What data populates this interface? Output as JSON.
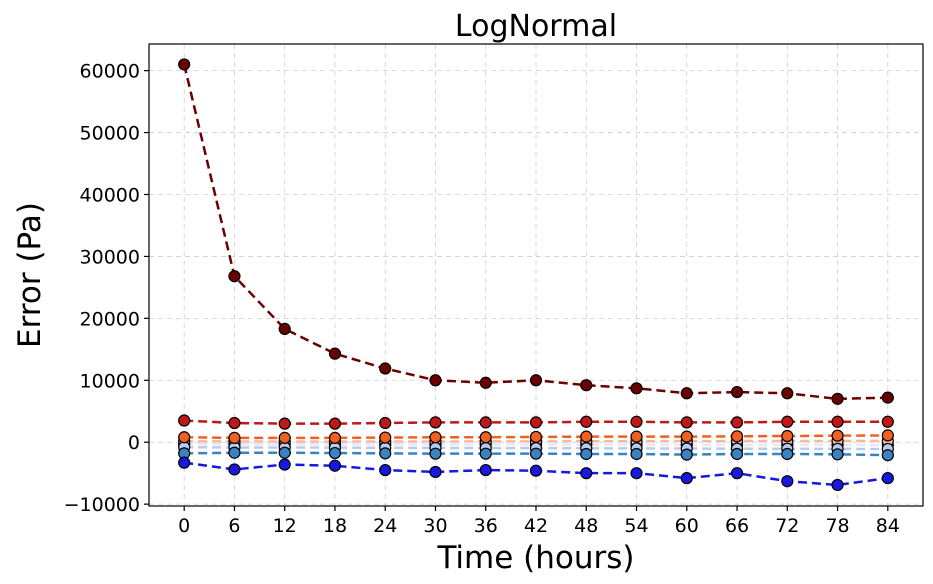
{
  "chart_data": {
    "type": "line",
    "title": "LogNormal",
    "xlabel": "Time (hours)",
    "ylabel": "Error (Pa)",
    "x": [
      0,
      6,
      12,
      18,
      24,
      30,
      36,
      42,
      48,
      54,
      60,
      66,
      72,
      78,
      84
    ],
    "xticks": [
      "0",
      "6",
      "12",
      "18",
      "24",
      "30",
      "36",
      "42",
      "48",
      "54",
      "60",
      "66",
      "72",
      "78",
      "84"
    ],
    "yticks": [
      "−10000",
      "0",
      "10000",
      "20000",
      "30000",
      "40000",
      "50000",
      "60000"
    ],
    "ytick_values": [
      -10000,
      0,
      10000,
      20000,
      30000,
      40000,
      50000,
      60000
    ],
    "xlim": [
      -4.2,
      88.2
    ],
    "ylim": [
      -10300,
      64300
    ],
    "grid": true,
    "series": [
      {
        "color": "#6b0000",
        "values": [
          61000,
          26800,
          18300,
          14300,
          11900,
          10000,
          9600,
          10000,
          9200,
          8700,
          7900,
          8100,
          7900,
          7000,
          7200
        ]
      },
      {
        "color": "#c01818",
        "values": [
          3500,
          3100,
          3000,
          3000,
          3100,
          3200,
          3200,
          3200,
          3300,
          3300,
          3200,
          3200,
          3300,
          3300,
          3300
        ]
      },
      {
        "color": "#f06020",
        "values": [
          800,
          700,
          700,
          700,
          750,
          800,
          800,
          850,
          900,
          900,
          900,
          950,
          1000,
          1050,
          1100
        ]
      },
      {
        "color": "#f9b8a0",
        "values": [
          150,
          120,
          100,
          100,
          110,
          120,
          130,
          140,
          150,
          160,
          170,
          180,
          190,
          200,
          210
        ]
      },
      {
        "color": "#e8e8f0",
        "values": [
          -300,
          -320,
          -330,
          -340,
          -350,
          -360,
          -370,
          -380,
          -390,
          -400,
          -410,
          -420,
          -430,
          -440,
          -450
        ]
      },
      {
        "color": "#b8ccf0",
        "values": [
          -800,
          -850,
          -850,
          -870,
          -900,
          -920,
          -950,
          -960,
          -980,
          -1000,
          -1020,
          -1040,
          -1060,
          -1080,
          -1100
        ]
      },
      {
        "color": "#3b82c0",
        "values": [
          -1800,
          -1700,
          -1700,
          -1750,
          -1800,
          -1850,
          -1850,
          -1850,
          -1900,
          -1900,
          -2000,
          -1900,
          -1900,
          -1950,
          -2100
        ]
      },
      {
        "color": "#1818e0",
        "values": [
          -3300,
          -4400,
          -3600,
          -3800,
          -4500,
          -4800,
          -4500,
          -4600,
          -5000,
          -5000,
          -5800,
          -5000,
          -6300,
          -6900,
          -5800
        ]
      }
    ]
  }
}
